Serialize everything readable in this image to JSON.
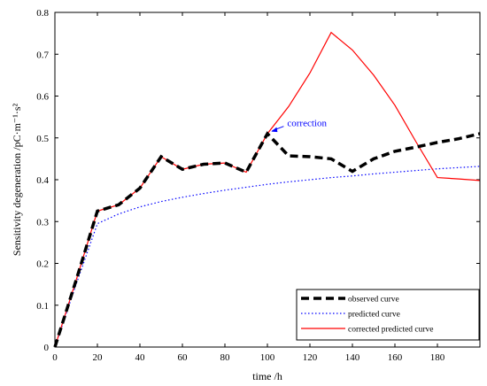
{
  "chart_data": {
    "type": "line",
    "title": "",
    "xlabel": "time /h",
    "ylabel": "Sensitivity degeneration /pC·m⁻¹·s²",
    "xlim": [
      0,
      200
    ],
    "ylim": [
      0,
      0.8
    ],
    "xticks": [
      "0",
      "20",
      "40",
      "60",
      "80",
      "100",
      "120",
      "140",
      "160",
      "180"
    ],
    "yticks": [
      "0",
      "0.1",
      "0.2",
      "0.3",
      "0.4",
      "0.5",
      "0.6",
      "0.7",
      "0.8"
    ],
    "legend_position": "bottom-right",
    "grid": false,
    "series": [
      {
        "name": "observed curve",
        "color": "#000000",
        "style": "dashed",
        "x": [
          0,
          10,
          20,
          30,
          40,
          50,
          60,
          70,
          80,
          90,
          100,
          110,
          120,
          130,
          140,
          150,
          160,
          170,
          180,
          190,
          200
        ],
        "y": [
          0.0,
          0.16,
          0.325,
          0.34,
          0.38,
          0.455,
          0.425,
          0.437,
          0.44,
          0.418,
          0.51,
          0.457,
          0.455,
          0.45,
          0.42,
          0.45,
          0.468,
          0.478,
          0.489,
          0.498,
          0.51
        ]
      },
      {
        "name": "predicted curve",
        "color": "#0000ff",
        "style": "dotted",
        "x": [
          0,
          10,
          20,
          30,
          40,
          50,
          60,
          70,
          80,
          90,
          100,
          110,
          120,
          130,
          140,
          150,
          160,
          170,
          180,
          190,
          200
        ],
        "y": [
          0.0,
          0.15,
          0.295,
          0.318,
          0.335,
          0.348,
          0.358,
          0.367,
          0.375,
          0.382,
          0.389,
          0.395,
          0.4,
          0.405,
          0.409,
          0.414,
          0.418,
          0.422,
          0.426,
          0.429,
          0.432
        ]
      },
      {
        "name": "corrected predicted curve",
        "color": "#ff0000",
        "style": "solid",
        "x": [
          0,
          10,
          20,
          30,
          40,
          50,
          60,
          70,
          80,
          90,
          100,
          110,
          120,
          130,
          140,
          150,
          160,
          170,
          180,
          190,
          200
        ],
        "y": [
          0.0,
          0.16,
          0.325,
          0.34,
          0.38,
          0.455,
          0.425,
          0.437,
          0.44,
          0.418,
          0.51,
          0.575,
          0.655,
          0.752,
          0.71,
          0.65,
          0.578,
          0.49,
          0.405,
          0.402,
          0.398
        ]
      }
    ],
    "annotations": [
      {
        "text": "correction",
        "x": 101,
        "y": 0.515,
        "color": "#0000ff"
      }
    ]
  }
}
